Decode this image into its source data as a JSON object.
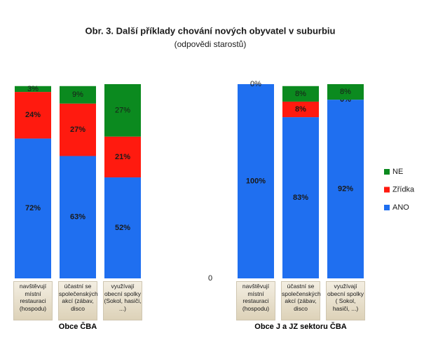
{
  "chart_data": {
    "type": "stacked_bar",
    "title": "Obr. 3. Další příklady chování nových obyvatel v suburbiu",
    "subtitle": "(odpovědi starostů)",
    "categories": [
      "navštěvují místní restauraci (hospodu)",
      "účastní se společenských akcí (zábav, disco",
      "využívají obecní spolky (Sokol, hasiči, ...)",
      "navštěvují místní restauraci (hospodu)",
      "účastní se společenských akcí (zábav, disco",
      "využívají obecní spolky ( Sokol, hasiči, ...)"
    ],
    "groups": [
      "Obce ČBA",
      "Obce J a JZ sektoru ČBA"
    ],
    "series": [
      {
        "name": "ANO",
        "color": "#1f6ff0",
        "values": [
          72,
          63,
          52,
          100,
          83,
          92
        ],
        "value_labels": [
          "72%",
          "63%",
          "52%",
          "100%",
          "83%",
          "92%"
        ]
      },
      {
        "name": "Zřídka",
        "color": "#ff1a0f",
        "values": [
          24,
          27,
          21,
          0,
          8,
          0
        ],
        "value_labels": [
          "24%",
          "27%",
          "21%",
          null,
          "8%",
          "0%"
        ]
      },
      {
        "name": "NE",
        "color": "#0b8a1f",
        "values": [
          3,
          9,
          27,
          0,
          8,
          8
        ],
        "value_labels": [
          "3%",
          "9%",
          "27%",
          "0%",
          "8%",
          "8%"
        ]
      }
    ],
    "ylim": [
      0,
      100
    ],
    "yticks": [
      0
    ]
  }
}
